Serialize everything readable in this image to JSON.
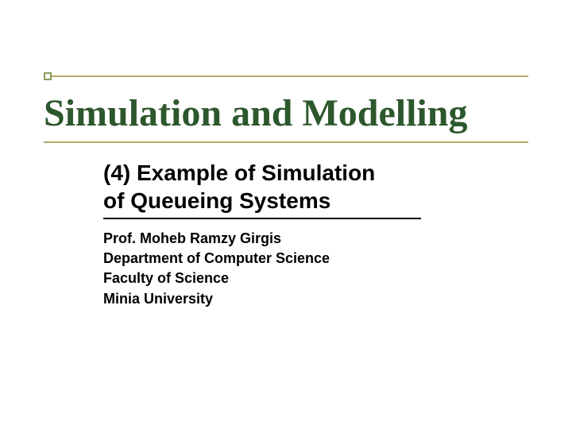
{
  "colors": {
    "title_color": "#2d572c",
    "rule_color": "#b5a96a",
    "accent_border": "#8a9a5b",
    "text_color": "#000000",
    "background": "#ffffff"
  },
  "title": "Simulation and Modelling",
  "subtitle_line1": "(4) Example of Simulation",
  "subtitle_line2": "of Queueing Systems",
  "details": {
    "line1": "Prof. Moheb Ramzy Girgis",
    "line2": "Department of Computer Science",
    "line3": "Faculty of Science",
    "line4": "Minia University"
  },
  "typography": {
    "title_font": "Times New Roman",
    "title_size_pt": 36,
    "body_font": "Arial",
    "subtitle_size_pt": 21,
    "detail_size_pt": 14
  }
}
